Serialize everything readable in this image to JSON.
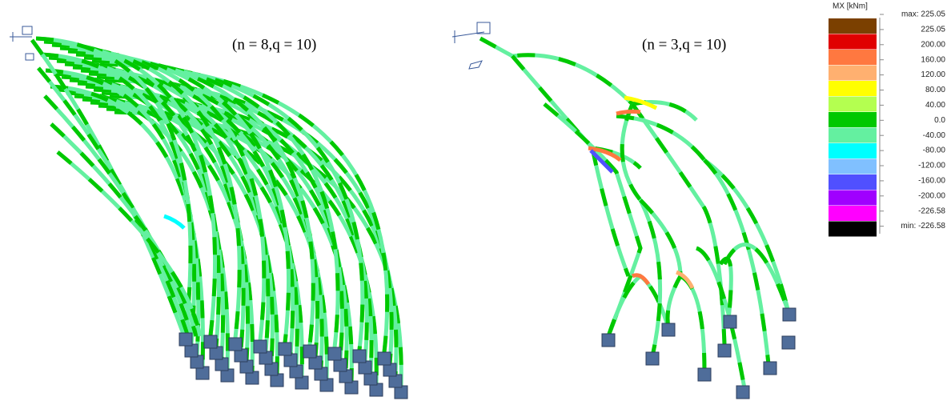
{
  "panels": [
    {
      "label": "(n = 8,q = 10)"
    },
    {
      "label": "(n = 3,q = 10)"
    }
  ],
  "legend": {
    "title": "MX [kNm]",
    "labels": [
      "max: 225.05",
      "225.05",
      "200.00",
      "160.00",
      "120.00",
      "80.00",
      "40.00",
      "0.0",
      "-40.00",
      "-80.00",
      "-120.00",
      "-160.00",
      "-200.00",
      "-226.58",
      "min: -226.58"
    ],
    "colors": [
      "#7b4000",
      "#e00000",
      "#ff7840",
      "#ffb070",
      "#ffff00",
      "#b4ff50",
      "#00c800",
      "#64f0a0",
      "#00ffff",
      "#80c0ff",
      "#5050ff",
      "#a000ff",
      "#ff00ff",
      "#000000"
    ]
  }
}
